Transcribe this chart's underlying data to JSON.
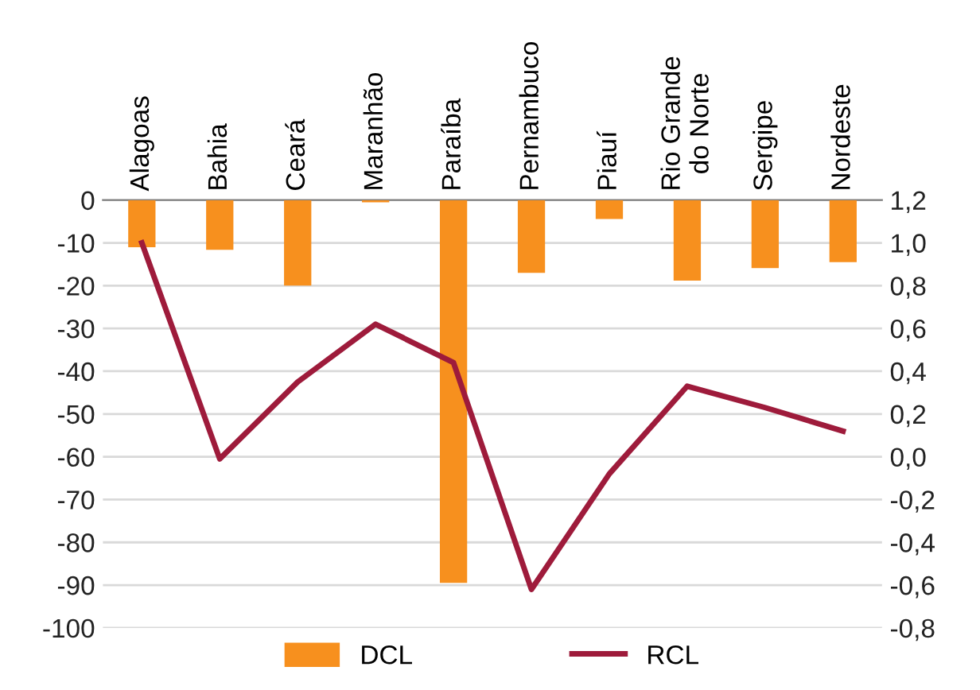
{
  "chart_data": {
    "type": "bar",
    "categories": [
      "Alagoas",
      "Bahia",
      "Ceará",
      "Maranhão",
      "Paraíba",
      "Pernambuco",
      "Piauí",
      "Rio Grande\ndo Norte",
      "Sergipe",
      "Nordeste"
    ],
    "series": [
      {
        "name": "DCL",
        "color": "#f7901e",
        "values": [
          -11,
          -11.6,
          -20,
          -0.5,
          -89.5,
          -17,
          -4.4,
          -18.8,
          -15.9,
          -14.5
        ]
      },
      {
        "name": "RCL",
        "type": "line",
        "axis": "y2",
        "color": "#9e1b3b",
        "values": [
          1.0,
          -0.01,
          0.35,
          0.62,
          0.44,
          -0.62,
          -0.08,
          0.33,
          0.23,
          0.12
        ]
      }
    ],
    "ylim": [
      -100,
      0
    ],
    "yticks": [
      -100,
      -90,
      -80,
      -70,
      -60,
      -50,
      -40,
      -30,
      -20,
      -10,
      0
    ],
    "y2lim": [
      -0.8,
      1.2
    ],
    "y2ticks": [
      {
        "value": -0.8,
        "label": "-0,8"
      },
      {
        "value": -0.6,
        "label": "-0,6"
      },
      {
        "value": -0.4,
        "label": "-0,4"
      },
      {
        "value": -0.2,
        "label": "-0,2"
      },
      {
        "value": 0,
        "label": "0,0"
      },
      {
        "value": 0.2,
        "label": "0,2"
      },
      {
        "value": 0.4,
        "label": "0,4"
      },
      {
        "value": 0.6,
        "label": "0,6"
      },
      {
        "value": 0.8,
        "label": "0,8"
      },
      {
        "value": 1.0,
        "label": "1,0"
      },
      {
        "value": 1.2,
        "label": "1,2"
      }
    ],
    "grid": "y",
    "legend": "bottom",
    "marker": "none",
    "line_style": "solid"
  }
}
